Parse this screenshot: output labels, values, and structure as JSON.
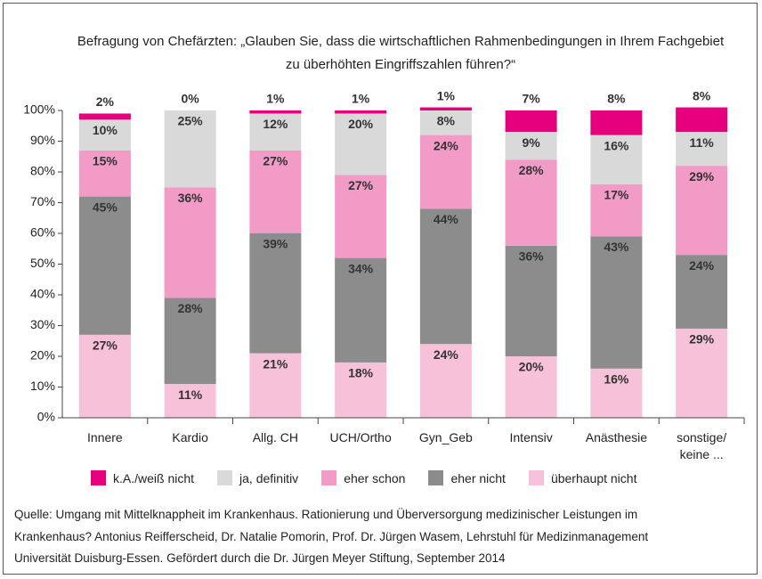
{
  "chart_data": {
    "type": "stacked_bar",
    "title": [
      "Befragung von Chefärzten: „Glauben Sie, dass die wirtschaftlichen Rahmenbedingungen in Ihrem Fachgebiet",
      "zu überhöhten Eingriffszahlen führen?“"
    ],
    "categories": [
      "Innere",
      "Kardio",
      "Allg. CH",
      "UCH/Ortho",
      "Gyn_Geb",
      "Intensiv",
      "Anästhesie",
      "sonstige/ keine ..."
    ],
    "series": [
      {
        "name": "überhaupt nicht",
        "color": "#f7c1d9",
        "values": [
          27,
          11,
          21,
          18,
          24,
          20,
          16,
          29
        ],
        "value_labels": [
          "27%",
          "11%",
          "21%",
          "18%",
          "24%",
          "20%",
          "16%",
          "29%"
        ]
      },
      {
        "name": "eher nicht",
        "color": "#8c8c8c",
        "values": [
          45,
          28,
          39,
          34,
          44,
          36,
          43,
          24
        ],
        "value_labels": [
          "45%",
          "28%",
          "39%",
          "34%",
          "44%",
          "36%",
          "43%",
          "24%"
        ]
      },
      {
        "name": "eher schon",
        "color": "#f29bc6",
        "values": [
          15,
          36,
          27,
          27,
          24,
          28,
          17,
          29
        ],
        "value_labels": [
          "15%",
          "36%",
          "27%",
          "27%",
          "24%",
          "28%",
          "17%",
          "29%"
        ]
      },
      {
        "name": "ja, definitiv",
        "color": "#d9d9d9",
        "values": [
          10,
          25,
          12,
          20,
          8,
          9,
          16,
          11
        ],
        "value_labels": [
          "10%",
          "25%",
          "12%",
          "20%",
          "8%",
          "9%",
          "16%",
          "11%"
        ]
      },
      {
        "name": "k.A./weiß nicht",
        "color": "#e6007e",
        "values": [
          2,
          0,
          1,
          1,
          1,
          7,
          8,
          8
        ],
        "value_labels": [
          "2%",
          "0%",
          "1%",
          "1%",
          "1%",
          "7%",
          "8%",
          "8%"
        ]
      }
    ],
    "ylim": [
      0,
      100
    ],
    "yticks": [
      {
        "value": 0,
        "label": "0%"
      },
      {
        "value": 10,
        "label": "10%"
      },
      {
        "value": 20,
        "label": "20%"
      },
      {
        "value": 30,
        "label": "30%"
      },
      {
        "value": 40,
        "label": "40%"
      },
      {
        "value": 50,
        "label": "50%"
      },
      {
        "value": 60,
        "label": "60%"
      },
      {
        "value": 70,
        "label": "70%"
      },
      {
        "value": 80,
        "label": "80%"
      },
      {
        "value": 90,
        "label": "90%"
      },
      {
        "value": 100,
        "label": "100%"
      }
    ],
    "legend_order": [
      4,
      3,
      2,
      1,
      0
    ],
    "source": [
      "Quelle: Umgang mit Mittelknappheit im Krankenhaus. Rationierung und Überversorgung medizinischer Leistungen im",
      "Krankenhaus? Antonius Reifferscheid, Dr. Natalie Pomorin, Prof. Dr. Jürgen Wasem, Lehrstuhl für Medizinmanagement",
      "Universität Duisburg-Essen. Gefördert durch die Dr. Jürgen Meyer Stiftung, September 2014"
    ]
  }
}
